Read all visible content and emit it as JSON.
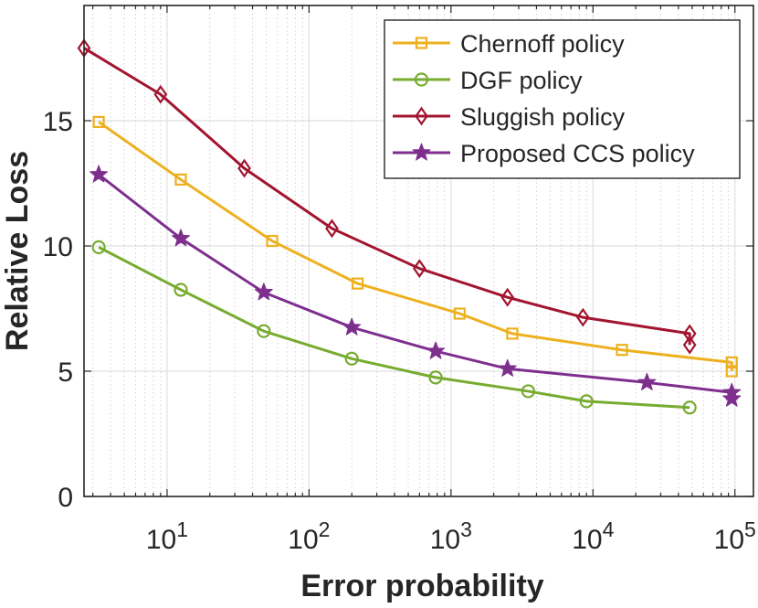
{
  "chart_data": {
    "type": "line",
    "title": "",
    "xlabel": "Error probability",
    "ylabel": "Relative Loss",
    "xscale": "log",
    "xlim": [
      2.6,
      135000
    ],
    "ylim": [
      0,
      19.6
    ],
    "grid": true,
    "legend_position": "top-right",
    "xticks": [
      {
        "value": 10,
        "base": "10",
        "exp": "1"
      },
      {
        "value": 100,
        "base": "10",
        "exp": "2"
      },
      {
        "value": 1000,
        "base": "10",
        "exp": "3"
      },
      {
        "value": 10000,
        "base": "10",
        "exp": "4"
      },
      {
        "value": 100000,
        "base": "10",
        "exp": "5"
      }
    ],
    "yticks": [
      {
        "value": 0,
        "label": "0"
      },
      {
        "value": 5,
        "label": "5"
      },
      {
        "value": 10,
        "label": "10"
      },
      {
        "value": 15,
        "label": "15"
      }
    ],
    "series": [
      {
        "name": "Chernoff policy",
        "color": "#EDB120",
        "marker": "square",
        "x": [
          3.3,
          12.5,
          55,
          220,
          1150,
          2700,
          16000,
          95000,
          95000
        ],
        "y": [
          14.95,
          12.65,
          10.2,
          8.5,
          7.3,
          6.5,
          5.85,
          5.35,
          5.0
        ]
      },
      {
        "name": "DGF policy",
        "color": "#77AC30",
        "marker": "circle",
        "x": [
          3.3,
          12.5,
          48,
          200,
          780,
          3500,
          9000,
          48000
        ],
        "y": [
          9.95,
          8.25,
          6.6,
          5.5,
          4.75,
          4.2,
          3.8,
          3.55
        ]
      },
      {
        "name": "Sluggish policy",
        "color": "#A2142F",
        "marker": "diamond",
        "x": [
          2.6,
          9,
          35,
          145,
          600,
          2500,
          8500,
          48000,
          48000
        ],
        "y": [
          17.9,
          16.05,
          13.1,
          10.7,
          9.1,
          7.95,
          7.15,
          6.5,
          6.05
        ]
      },
      {
        "name": "Proposed CCS policy",
        "color": "#7E2F8E",
        "marker": "star",
        "x": [
          3.3,
          12.5,
          48,
          200,
          780,
          2500,
          24000,
          95000,
          95000
        ],
        "y": [
          12.85,
          10.3,
          8.15,
          6.75,
          5.8,
          5.1,
          4.55,
          4.15,
          3.9
        ]
      }
    ]
  }
}
